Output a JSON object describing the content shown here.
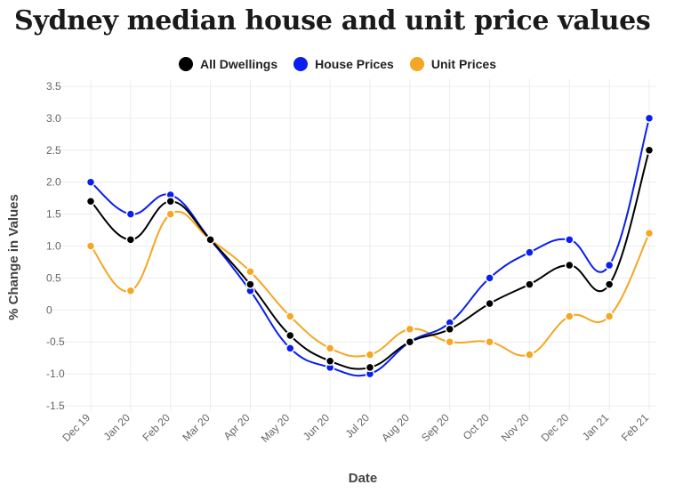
{
  "page": {
    "title": "Sydney median house and unit price values"
  },
  "chart_data": {
    "type": "line",
    "title": "Sydney median house and unit price values",
    "xlabel": "Date",
    "ylabel": "% Change in Values",
    "categories": [
      "Dec 19",
      "Jan 20",
      "Feb 20",
      "Mar 20",
      "Apr 20",
      "May 20",
      "Jun 20",
      "Jul 20",
      "Aug 20",
      "Sep 20",
      "Oct 20",
      "Nov 20",
      "Dec 20",
      "Jan 21",
      "Feb 21"
    ],
    "ylim": [
      -1.5,
      3.5
    ],
    "yticks": [
      "3.5",
      "3.0",
      "2.5",
      "2.0",
      "1.5",
      "1.0",
      "0.5",
      "0",
      "-0.5",
      "-1.0",
      "-1.5"
    ],
    "grid": true,
    "legend_position": "top-center",
    "series": [
      {
        "name": "All Dwellings",
        "color": "#000000",
        "values": [
          1.7,
          1.1,
          1.7,
          1.1,
          0.4,
          -0.4,
          -0.8,
          -0.9,
          -0.5,
          -0.3,
          0.1,
          0.4,
          0.7,
          0.4,
          2.5
        ]
      },
      {
        "name": "House Prices",
        "color": "#0a1ef0",
        "values": [
          2.0,
          1.5,
          1.8,
          1.1,
          0.3,
          -0.6,
          -0.9,
          -1.0,
          -0.5,
          -0.2,
          0.5,
          0.9,
          1.1,
          0.7,
          3.0
        ]
      },
      {
        "name": "Unit Prices",
        "color": "#f5a623",
        "values": [
          1.0,
          0.3,
          1.5,
          1.1,
          0.6,
          -0.1,
          -0.6,
          -0.7,
          -0.3,
          -0.5,
          -0.5,
          -0.7,
          -0.1,
          -0.1,
          1.2
        ]
      }
    ]
  }
}
